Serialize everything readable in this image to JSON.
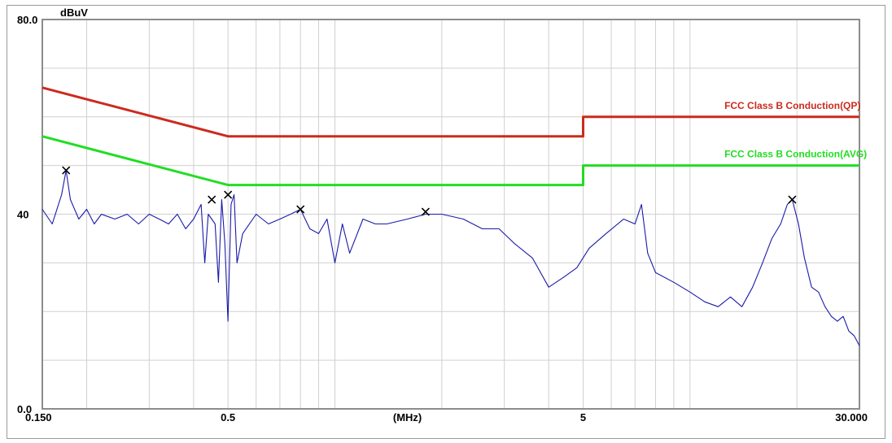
{
  "chart_data": {
    "type": "line",
    "x_scale": "log",
    "xlim": [
      0.15,
      30.0
    ],
    "ylim": [
      0.0,
      80.0
    ],
    "y_unit": "dBuV",
    "x_unit": "(MHz)",
    "y_tick_labels": [
      {
        "value": 80.0,
        "label": "80.0"
      },
      {
        "value": 40,
        "label": "40"
      },
      {
        "value": 0.0,
        "label": "0.0"
      }
    ],
    "x_tick_labels": [
      {
        "value": 0.15,
        "label": "0.150"
      },
      {
        "value": 0.5,
        "label": "0.5"
      },
      {
        "value": 5,
        "label": "5"
      },
      {
        "value": 30.0,
        "label": "30.000"
      }
    ],
    "grid": true,
    "series": [
      {
        "name": "FCC Class B Conduction(QP)",
        "color": "#cc2a1e",
        "points": [
          [
            0.15,
            66
          ],
          [
            0.5,
            56
          ],
          [
            5,
            56
          ],
          [
            5,
            60
          ],
          [
            30,
            60
          ]
        ]
      },
      {
        "name": "FCC Class B Conduction(AVG)",
        "color": "#22dd22",
        "points": [
          [
            0.15,
            56
          ],
          [
            0.5,
            46
          ],
          [
            5,
            46
          ],
          [
            5,
            50
          ],
          [
            30,
            50
          ]
        ]
      },
      {
        "name": "",
        "color": "#1a1aaa",
        "points": [
          [
            0.15,
            41
          ],
          [
            0.16,
            38
          ],
          [
            0.17,
            44
          ],
          [
            0.175,
            49
          ],
          [
            0.18,
            43
          ],
          [
            0.19,
            39
          ],
          [
            0.2,
            41
          ],
          [
            0.21,
            38
          ],
          [
            0.22,
            40
          ],
          [
            0.24,
            39
          ],
          [
            0.26,
            40
          ],
          [
            0.28,
            38
          ],
          [
            0.3,
            40
          ],
          [
            0.32,
            39
          ],
          [
            0.34,
            38
          ],
          [
            0.36,
            40
          ],
          [
            0.38,
            37
          ],
          [
            0.4,
            39
          ],
          [
            0.42,
            42
          ],
          [
            0.43,
            30
          ],
          [
            0.44,
            40
          ],
          [
            0.46,
            38
          ],
          [
            0.47,
            26
          ],
          [
            0.48,
            43
          ],
          [
            0.49,
            34
          ],
          [
            0.5,
            18
          ],
          [
            0.51,
            42
          ],
          [
            0.52,
            44
          ],
          [
            0.53,
            30
          ],
          [
            0.55,
            36
          ],
          [
            0.6,
            40
          ],
          [
            0.65,
            38
          ],
          [
            0.7,
            39
          ],
          [
            0.75,
            40
          ],
          [
            0.8,
            41
          ],
          [
            0.85,
            37
          ],
          [
            0.9,
            36
          ],
          [
            0.95,
            39
          ],
          [
            1.0,
            30
          ],
          [
            1.05,
            38
          ],
          [
            1.1,
            32
          ],
          [
            1.2,
            39
          ],
          [
            1.3,
            38
          ],
          [
            1.4,
            38
          ],
          [
            1.6,
            39
          ],
          [
            1.8,
            40
          ],
          [
            2.0,
            40
          ],
          [
            2.3,
            39
          ],
          [
            2.6,
            37
          ],
          [
            2.9,
            37
          ],
          [
            3.2,
            34
          ],
          [
            3.6,
            31
          ],
          [
            4.0,
            25
          ],
          [
            4.4,
            27
          ],
          [
            4.8,
            29
          ],
          [
            5.2,
            33
          ],
          [
            5.8,
            36
          ],
          [
            6.5,
            39
          ],
          [
            7.0,
            38
          ],
          [
            7.3,
            42
          ],
          [
            7.6,
            32
          ],
          [
            8.0,
            28
          ],
          [
            9.0,
            26
          ],
          [
            10,
            24
          ],
          [
            11,
            22
          ],
          [
            12,
            21
          ],
          [
            13,
            23
          ],
          [
            14,
            21
          ],
          [
            15,
            25
          ],
          [
            16,
            30
          ],
          [
            17,
            35
          ],
          [
            18,
            38
          ],
          [
            18.8,
            42
          ],
          [
            19.4,
            43
          ],
          [
            20.2,
            38
          ],
          [
            21,
            31
          ],
          [
            22,
            25
          ],
          [
            23,
            24
          ],
          [
            24,
            21
          ],
          [
            25,
            19
          ],
          [
            26,
            18
          ],
          [
            27,
            19
          ],
          [
            28,
            16
          ],
          [
            29,
            15
          ],
          [
            30,
            13
          ]
        ]
      }
    ],
    "markers": [
      [
        0.175,
        49
      ],
      [
        0.45,
        43
      ],
      [
        0.5,
        44
      ],
      [
        0.8,
        41
      ],
      [
        1.8,
        40.5
      ],
      [
        19.4,
        43
      ]
    ]
  }
}
